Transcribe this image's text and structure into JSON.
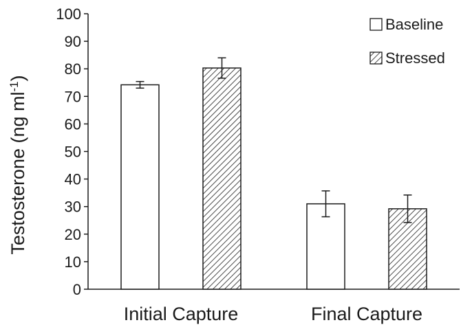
{
  "chart_data": {
    "type": "bar",
    "categories": [
      "Initial Capture",
      "Final Capture"
    ],
    "series": [
      {
        "name": "Baseline",
        "values": [
          74.2,
          31.0
        ],
        "errors": [
          1.2,
          4.7
        ],
        "fill": "#ffffff",
        "pattern": "none"
      },
      {
        "name": "Stressed",
        "values": [
          80.3,
          29.2
        ],
        "errors": [
          3.7,
          5.0
        ],
        "fill": "#ffffff",
        "pattern": "diagonal-hatch"
      }
    ],
    "ylabel": "Testosterone (ng ml",
    "ylabel_superscript": "-1",
    "ylabel_close": ")",
    "ylim": [
      0,
      100
    ],
    "yticks": [
      "0",
      "10",
      "20",
      "30",
      "40",
      "50",
      "60",
      "70",
      "80",
      "90",
      "100"
    ],
    "grid": false,
    "legend_position": "top-right",
    "colors": {
      "bar_stroke": "#1a1a1a",
      "hatch": "#1a1a1a",
      "axis": "#1a1a1a"
    }
  }
}
